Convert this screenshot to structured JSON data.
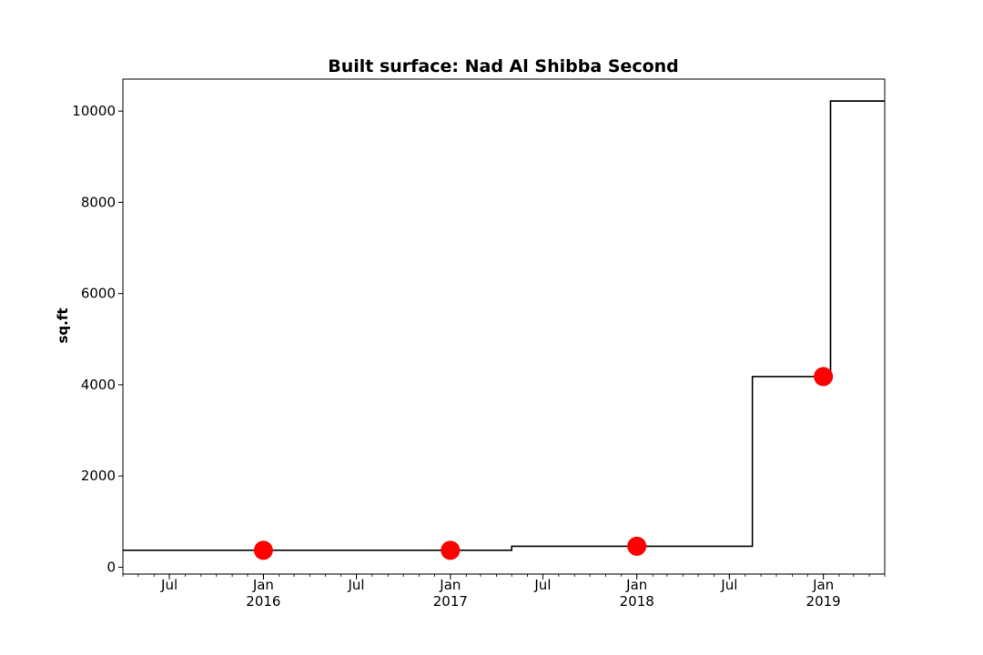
{
  "chart_data": {
    "type": "line",
    "subtype": "step",
    "title": "Built surface: Nad Al Shibba Second",
    "xlabel": "",
    "ylabel": "sq.ft",
    "xlim": [
      "2015-04-01",
      "2019-05-01"
    ],
    "ylim": [
      -150,
      10700
    ],
    "y_ticks": [
      0,
      2000,
      4000,
      6000,
      8000,
      10000
    ],
    "x_ticks": [
      {
        "date": "2015-07-01",
        "label": "Jul",
        "sublabel": ""
      },
      {
        "date": "2016-01-01",
        "label": "Jan",
        "sublabel": "2016"
      },
      {
        "date": "2016-07-01",
        "label": "Jul",
        "sublabel": ""
      },
      {
        "date": "2017-01-01",
        "label": "Jan",
        "sublabel": "2017"
      },
      {
        "date": "2017-07-01",
        "label": "Jul",
        "sublabel": ""
      },
      {
        "date": "2018-01-01",
        "label": "Jan",
        "sublabel": "2018"
      },
      {
        "date": "2018-07-01",
        "label": "Jul",
        "sublabel": ""
      },
      {
        "date": "2019-01-01",
        "label": "Jan",
        "sublabel": "2019"
      }
    ],
    "grid": false,
    "series": [
      {
        "style": "step",
        "color": "#000000",
        "x": [
          "2015-04-01",
          "2017-05-01",
          "2018-08-15",
          "2019-01-15",
          "2019-05-01"
        ],
        "y": [
          370,
          460,
          4180,
          10220,
          10220
        ]
      },
      {
        "style": "markers",
        "color": "#ff0000",
        "x": [
          "2016-01-01",
          "2017-01-01",
          "2018-01-01",
          "2019-01-01"
        ],
        "y": [
          370,
          370,
          460,
          4180
        ]
      }
    ]
  }
}
